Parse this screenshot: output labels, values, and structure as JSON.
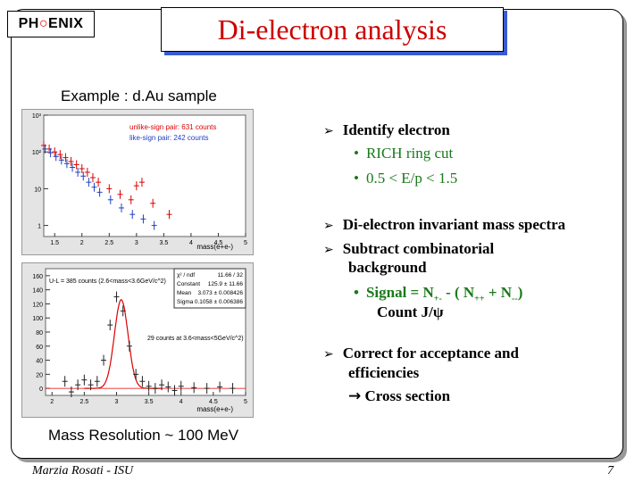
{
  "header": {
    "logo_left": "PH",
    "logo_mid": "",
    "logo_right": "ENIX",
    "title": "Di-electron analysis"
  },
  "left": {
    "example_label": "Example : d.Au sample",
    "resolution_label": "Mass Resolution ~ 100 MeV"
  },
  "plot_top": {
    "legend_unlike": "unlike-sign pair: 631 counts",
    "legend_like": "like-sign pair: 242 counts",
    "y_ticks": [
      "10³",
      "10²",
      "10",
      "1"
    ],
    "x_ticks": [
      "1.5",
      "2",
      "2.5",
      "3",
      "3.5",
      "4",
      "4.5",
      "5"
    ],
    "xlabel": "mass(e+e-)"
  },
  "plot_bottom": {
    "stats_rows": [
      [
        "χ² / ndf",
        "11.66 / 32"
      ],
      [
        "Constant",
        "125.9 ± 11.66"
      ],
      [
        "Mean",
        "3.073 ± 0.008426"
      ],
      [
        "Sigma",
        "0.1058 ± 0.006386"
      ]
    ],
    "annot_ul": "U-L = 385 counts (2.6<mass<3.6GeV/c^2)",
    "annot_29": "29 counts at 3.6<mass<5GeV/c^2)",
    "y_ticks": [
      "160",
      "140",
      "120",
      "100",
      "80",
      "60",
      "40",
      "20",
      "0"
    ],
    "x_ticks": [
      "2",
      "2.5",
      "3",
      "3.5",
      "4",
      "4.5",
      "5"
    ],
    "xlabel": "mass(e+e-)"
  },
  "bullets": {
    "identify": "Identify electron",
    "rich": "RICH ring cut",
    "ep": "0.5 < E/p < 1.5",
    "dielectron": "Di-electron invariant mass spectra",
    "subtract1": "Subtract combinatorial",
    "subtract2": "background",
    "signal_eq": "Signal = N",
    "signal_sub1": "+-",
    "signal_mid": " - ( N",
    "signal_sub2": "++",
    "signal_plus": " + N",
    "signal_sub3": "--",
    "signal_end": ")",
    "count": "Count J/ψ",
    "correct1": "Correct for acceptance and",
    "correct2": "efficiencies",
    "cross": "Cross section"
  },
  "footer": {
    "author": "Marzia Rosati -  ISU",
    "page": "7"
  },
  "colors": {
    "title": "#c00",
    "green": "#1a7a1a",
    "shadow": "#3a5bd0"
  },
  "chart_data": [
    {
      "type": "scatter",
      "xlabel": "mass(e+e-)",
      "series": [
        {
          "name": "unlike-sign pair: 631 counts",
          "color": "#d00",
          "x": [
            1.3,
            1.4,
            1.5,
            1.6,
            1.7,
            1.8,
            1.9,
            2.0,
            2.1,
            2.2,
            2.3,
            2.5,
            2.7,
            2.9,
            3.0,
            3.1,
            3.3,
            3.6
          ],
          "y": [
            150,
            120,
            100,
            85,
            70,
            55,
            45,
            35,
            28,
            20,
            15,
            10,
            7,
            5,
            12,
            15,
            4,
            2
          ]
        },
        {
          "name": "like-sign pair: 242 counts",
          "color": "#2040c0",
          "x": [
            1.3,
            1.4,
            1.5,
            1.6,
            1.7,
            1.8,
            1.9,
            2.0,
            2.1,
            2.2,
            2.3,
            2.5,
            2.7,
            2.9,
            3.1,
            3.3
          ],
          "y": [
            120,
            95,
            75,
            60,
            48,
            38,
            28,
            22,
            15,
            11,
            8,
            5,
            3,
            2,
            1.5,
            1
          ]
        }
      ],
      "ylim_log": [
        0.5,
        1000
      ],
      "xlim": [
        1.3,
        5
      ]
    },
    {
      "type": "scatter",
      "xlabel": "mass(e+e-)",
      "series": [
        {
          "name": "",
          "color": "#222",
          "x": [
            2.2,
            2.3,
            2.4,
            2.5,
            2.6,
            2.7,
            2.8,
            2.9,
            3.0,
            3.1,
            3.2,
            3.3,
            3.4,
            3.5,
            3.6,
            3.7,
            3.8,
            3.9,
            4.0,
            4.2,
            4.4,
            4.6,
            4.8
          ],
          "y": [
            10,
            -5,
            5,
            12,
            5,
            10,
            40,
            90,
            130,
            110,
            60,
            20,
            10,
            3,
            0,
            5,
            2,
            -3,
            3,
            1,
            0,
            2,
            0
          ]
        },
        {
          "name": "",
          "color": "#d00",
          "fit": "gaus",
          "constant": 125.9,
          "mean": 3.073,
          "sigma": 0.1058
        }
      ],
      "ylim": [
        -10,
        170
      ],
      "xlim": [
        1.9,
        5
      ]
    }
  ]
}
